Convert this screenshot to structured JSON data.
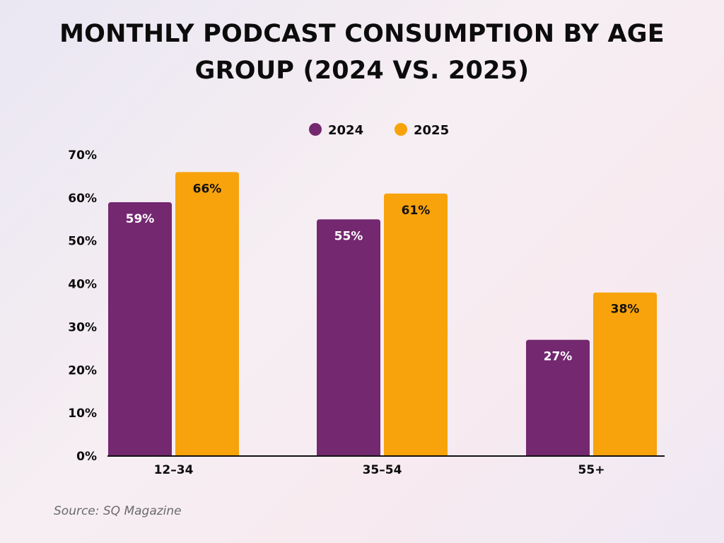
{
  "chart_data": {
    "type": "bar",
    "title": "MONTHLY PODCAST CONSUMPTION BY AGE GROUP (2024 VS. 2025)",
    "xlabel": "",
    "ylabel": "",
    "categories": [
      "12–34",
      "35–54",
      "55+"
    ],
    "series": [
      {
        "name": "2024",
        "values": [
          59,
          55,
          27
        ],
        "labels": [
          "59%",
          "55%",
          "27%"
        ],
        "color": "#732870"
      },
      {
        "name": "2025",
        "values": [
          66,
          61,
          38
        ],
        "labels": [
          "66%",
          "61%",
          "38%"
        ],
        "color": "#f8a30b"
      }
    ],
    "ylim": [
      0,
      70
    ],
    "yticks": [
      0,
      10,
      20,
      30,
      40,
      50,
      60,
      70
    ],
    "ytick_labels": [
      "0%",
      "10%",
      "20%",
      "30%",
      "40%",
      "50%",
      "60%",
      "70%"
    ],
    "grid": false,
    "legend_position": "top-center"
  },
  "title_lines": [
    "MONTHLY PODCAST CONSUMPTION BY AGE",
    "GROUP (2024 VS. 2025)"
  ],
  "source": "Source: SQ Magazine",
  "colors": {
    "series_2024": "#732870",
    "series_2025": "#f8a30b",
    "axis": "#111111",
    "text": "#0c0c0c"
  }
}
